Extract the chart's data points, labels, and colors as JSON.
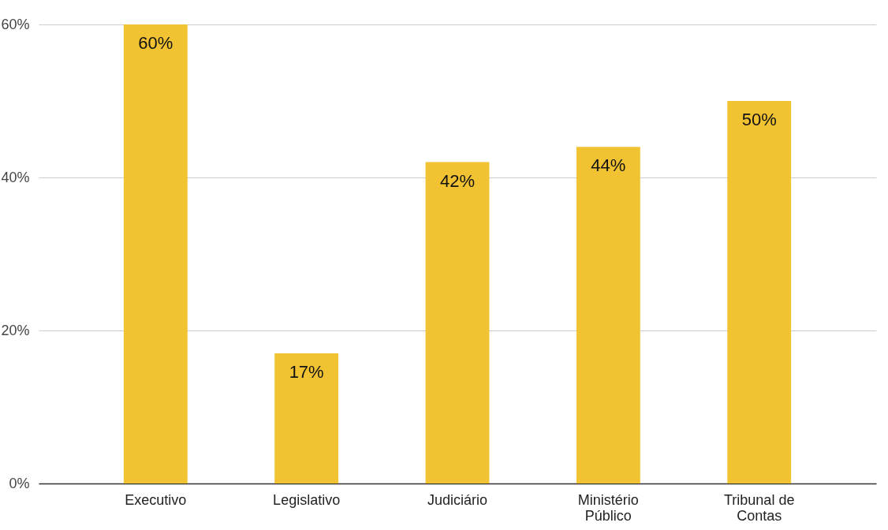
{
  "chart_data": {
    "type": "bar",
    "categories": [
      "Executivo",
      "Legislativo",
      "Judiciário",
      "Ministério Público",
      "Tribunal de Contas"
    ],
    "values": [
      60,
      17,
      42,
      44,
      50
    ],
    "value_labels": [
      "60%",
      "17%",
      "42%",
      "44%",
      "50%"
    ],
    "color": "#f1c232",
    "ylim": [
      0,
      60
    ],
    "yticks": [
      {
        "value": 0,
        "label": "0%"
      },
      {
        "value": 20,
        "label": "20%"
      },
      {
        "value": 40,
        "label": "40%"
      },
      {
        "value": 60,
        "label": "60%"
      }
    ],
    "grid": "y"
  }
}
